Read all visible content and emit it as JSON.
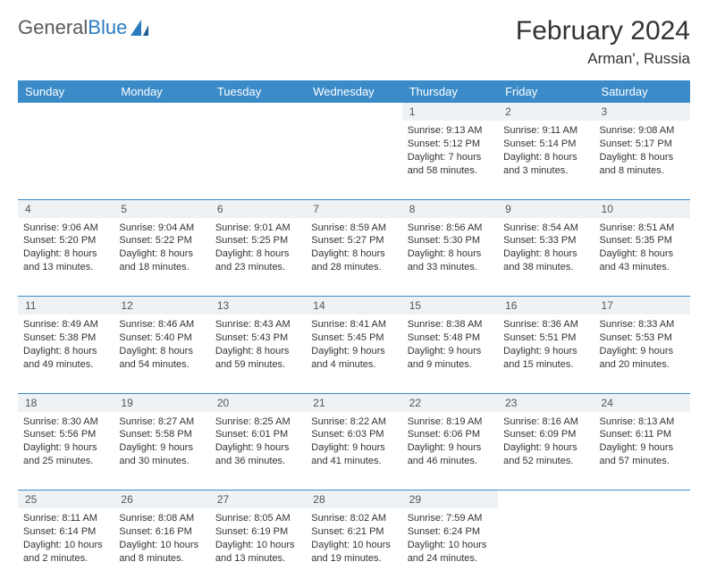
{
  "logo": {
    "textGray": "General",
    "textBlue": "Blue"
  },
  "title": "February 2024",
  "location": "Arman', Russia",
  "colors": {
    "headerBg": "#3b8bc9",
    "headerText": "#ffffff",
    "dayNumBg": "#eef2f5",
    "border": "#3b8bc9",
    "bodyText": "#333333",
    "logoGray": "#5a5a5a",
    "logoBlue": "#2b7bbf"
  },
  "typography": {
    "title_fontsize": 30,
    "location_fontsize": 17,
    "dayheader_fontsize": 13,
    "cell_fontsize": 11,
    "daynum_fontsize": 12
  },
  "dayHeaders": [
    "Sunday",
    "Monday",
    "Tuesday",
    "Wednesday",
    "Thursday",
    "Friday",
    "Saturday"
  ],
  "weeks": [
    [
      null,
      null,
      null,
      null,
      {
        "n": "1",
        "sr": "9:13 AM",
        "ss": "5:12 PM",
        "dl": "7 hours and 58 minutes."
      },
      {
        "n": "2",
        "sr": "9:11 AM",
        "ss": "5:14 PM",
        "dl": "8 hours and 3 minutes."
      },
      {
        "n": "3",
        "sr": "9:08 AM",
        "ss": "5:17 PM",
        "dl": "8 hours and 8 minutes."
      }
    ],
    [
      {
        "n": "4",
        "sr": "9:06 AM",
        "ss": "5:20 PM",
        "dl": "8 hours and 13 minutes."
      },
      {
        "n": "5",
        "sr": "9:04 AM",
        "ss": "5:22 PM",
        "dl": "8 hours and 18 minutes."
      },
      {
        "n": "6",
        "sr": "9:01 AM",
        "ss": "5:25 PM",
        "dl": "8 hours and 23 minutes."
      },
      {
        "n": "7",
        "sr": "8:59 AM",
        "ss": "5:27 PM",
        "dl": "8 hours and 28 minutes."
      },
      {
        "n": "8",
        "sr": "8:56 AM",
        "ss": "5:30 PM",
        "dl": "8 hours and 33 minutes."
      },
      {
        "n": "9",
        "sr": "8:54 AM",
        "ss": "5:33 PM",
        "dl": "8 hours and 38 minutes."
      },
      {
        "n": "10",
        "sr": "8:51 AM",
        "ss": "5:35 PM",
        "dl": "8 hours and 43 minutes."
      }
    ],
    [
      {
        "n": "11",
        "sr": "8:49 AM",
        "ss": "5:38 PM",
        "dl": "8 hours and 49 minutes."
      },
      {
        "n": "12",
        "sr": "8:46 AM",
        "ss": "5:40 PM",
        "dl": "8 hours and 54 minutes."
      },
      {
        "n": "13",
        "sr": "8:43 AM",
        "ss": "5:43 PM",
        "dl": "8 hours and 59 minutes."
      },
      {
        "n": "14",
        "sr": "8:41 AM",
        "ss": "5:45 PM",
        "dl": "9 hours and 4 minutes."
      },
      {
        "n": "15",
        "sr": "8:38 AM",
        "ss": "5:48 PM",
        "dl": "9 hours and 9 minutes."
      },
      {
        "n": "16",
        "sr": "8:36 AM",
        "ss": "5:51 PM",
        "dl": "9 hours and 15 minutes."
      },
      {
        "n": "17",
        "sr": "8:33 AM",
        "ss": "5:53 PM",
        "dl": "9 hours and 20 minutes."
      }
    ],
    [
      {
        "n": "18",
        "sr": "8:30 AM",
        "ss": "5:56 PM",
        "dl": "9 hours and 25 minutes."
      },
      {
        "n": "19",
        "sr": "8:27 AM",
        "ss": "5:58 PM",
        "dl": "9 hours and 30 minutes."
      },
      {
        "n": "20",
        "sr": "8:25 AM",
        "ss": "6:01 PM",
        "dl": "9 hours and 36 minutes."
      },
      {
        "n": "21",
        "sr": "8:22 AM",
        "ss": "6:03 PM",
        "dl": "9 hours and 41 minutes."
      },
      {
        "n": "22",
        "sr": "8:19 AM",
        "ss": "6:06 PM",
        "dl": "9 hours and 46 minutes."
      },
      {
        "n": "23",
        "sr": "8:16 AM",
        "ss": "6:09 PM",
        "dl": "9 hours and 52 minutes."
      },
      {
        "n": "24",
        "sr": "8:13 AM",
        "ss": "6:11 PM",
        "dl": "9 hours and 57 minutes."
      }
    ],
    [
      {
        "n": "25",
        "sr": "8:11 AM",
        "ss": "6:14 PM",
        "dl": "10 hours and 2 minutes."
      },
      {
        "n": "26",
        "sr": "8:08 AM",
        "ss": "6:16 PM",
        "dl": "10 hours and 8 minutes."
      },
      {
        "n": "27",
        "sr": "8:05 AM",
        "ss": "6:19 PM",
        "dl": "10 hours and 13 minutes."
      },
      {
        "n": "28",
        "sr": "8:02 AM",
        "ss": "6:21 PM",
        "dl": "10 hours and 19 minutes."
      },
      {
        "n": "29",
        "sr": "7:59 AM",
        "ss": "6:24 PM",
        "dl": "10 hours and 24 minutes."
      },
      null,
      null
    ]
  ],
  "labels": {
    "sunrise": "Sunrise:",
    "sunset": "Sunset:",
    "daylight": "Daylight:"
  }
}
